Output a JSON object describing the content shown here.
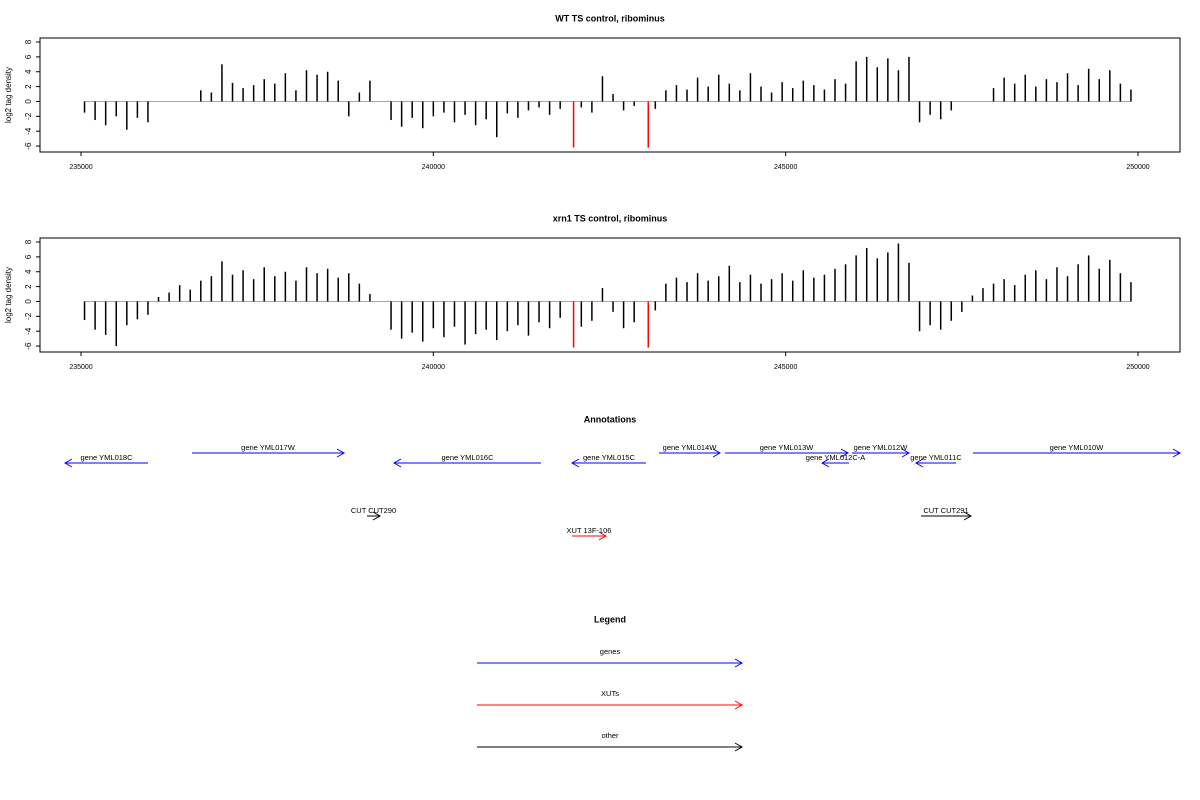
{
  "chart_data": [
    {
      "type": "bar",
      "title": "WT TS control, ribominus",
      "ylabel": "log2 tag density",
      "xlim": [
        234418,
        250596
      ],
      "xticks": [
        235000,
        240000,
        245000,
        250000
      ],
      "ylim": [
        -6.8,
        8.54
      ],
      "yticks": [
        -6,
        -4,
        -2,
        0,
        2,
        4,
        6,
        8
      ],
      "series": [
        {
          "color": "#000000",
          "x": [
            235050,
            235200,
            235350,
            235500,
            235650,
            235800,
            235950,
            236100,
            236250,
            236400,
            236550,
            236700,
            236850,
            237000,
            237150,
            237300,
            237450,
            237600,
            237750,
            237900,
            238050,
            238200,
            238350,
            238500,
            238650,
            238800,
            238950,
            239100,
            239250,
            239400,
            239550,
            239700,
            239850,
            240000,
            240150,
            240300,
            240450,
            240600,
            240750,
            240900,
            241050,
            241200,
            241350,
            241500,
            241650,
            241800,
            242100,
            242250,
            242400,
            242550,
            242700,
            242850,
            243150,
            243300,
            243450,
            243600,
            243750,
            243900,
            244050,
            244200,
            244350,
            244500,
            244650,
            244800,
            244950,
            245100,
            245250,
            245400,
            245550,
            245700,
            245850,
            246000,
            246150,
            246300,
            246450,
            246600,
            246750,
            246900,
            247050,
            247200,
            247350,
            247500,
            247650,
            247800,
            247950,
            248100,
            248250,
            248400,
            248550,
            248700,
            248850,
            249000,
            249150,
            249300,
            249450,
            249600,
            249750,
            249900
          ],
          "values": [
            -1.5,
            -2.5,
            -3.2,
            -2.0,
            -3.8,
            -2.2,
            -2.8,
            0,
            0,
            0,
            0,
            1.5,
            1.2,
            5.0,
            2.5,
            1.8,
            2.2,
            3.0,
            2.4,
            3.8,
            1.5,
            4.2,
            3.6,
            4.0,
            2.8,
            -2.0,
            1.2,
            2.8,
            0,
            -2.5,
            -3.4,
            -2.2,
            -3.6,
            -2.0,
            -1.5,
            -2.8,
            -1.8,
            -3.2,
            -2.4,
            -4.8,
            -1.6,
            -2.2,
            -1.2,
            -0.8,
            -1.8,
            -1.0,
            -0.8,
            -1.5,
            3.4,
            1.0,
            -1.2,
            -0.6,
            -1.0,
            1.5,
            2.2,
            1.6,
            3.2,
            2.0,
            3.6,
            2.4,
            1.5,
            3.8,
            2.0,
            1.2,
            2.6,
            1.8,
            2.8,
            2.2,
            1.6,
            3.0,
            2.4,
            5.4,
            6.0,
            4.6,
            5.8,
            4.2,
            6.0,
            -2.8,
            -1.8,
            -2.4,
            -1.2,
            0,
            0,
            0,
            1.8,
            3.2,
            2.4,
            3.6,
            2.0,
            3.0,
            2.6,
            3.8,
            2.2,
            4.4,
            3.0,
            4.2,
            2.4,
            1.6
          ]
        },
        {
          "color": "#ff0000",
          "x": [
            241990,
            243050
          ],
          "values": [
            -6.2,
            -6.2
          ]
        }
      ]
    },
    {
      "type": "bar",
      "title": "xrn1 TS control, ribominus",
      "ylabel": "log2 tag density",
      "xlim": [
        234418,
        250596
      ],
      "xticks": [
        235000,
        240000,
        245000,
        250000
      ],
      "ylim": [
        -6.8,
        8.54
      ],
      "yticks": [
        -6,
        -4,
        -2,
        0,
        2,
        4,
        6,
        8
      ],
      "series": [
        {
          "color": "#000000",
          "x": [
            235050,
            235200,
            235350,
            235500,
            235650,
            235800,
            235950,
            236100,
            236250,
            236400,
            236550,
            236700,
            236850,
            237000,
            237150,
            237300,
            237450,
            237600,
            237750,
            237900,
            238050,
            238200,
            238350,
            238500,
            238650,
            238800,
            238950,
            239100,
            239250,
            239400,
            239550,
            239700,
            239850,
            240000,
            240150,
            240300,
            240450,
            240600,
            240750,
            240900,
            241050,
            241200,
            241350,
            241500,
            241650,
            241800,
            242100,
            242250,
            242400,
            242550,
            242700,
            242850,
            243150,
            243300,
            243450,
            243600,
            243750,
            243900,
            244050,
            244200,
            244350,
            244500,
            244650,
            244800,
            244950,
            245100,
            245250,
            245400,
            245550,
            245700,
            245850,
            246000,
            246150,
            246300,
            246450,
            246600,
            246750,
            246900,
            247050,
            247200,
            247350,
            247500,
            247650,
            247800,
            247950,
            248100,
            248250,
            248400,
            248550,
            248700,
            248850,
            249000,
            249150,
            249300,
            249450,
            249600,
            249750,
            249900
          ],
          "values": [
            -2.5,
            -3.8,
            -4.5,
            -6.0,
            -3.2,
            -2.4,
            -1.8,
            0.6,
            1.2,
            2.2,
            1.6,
            2.8,
            3.4,
            5.4,
            3.6,
            4.2,
            3.0,
            4.6,
            3.4,
            4.0,
            2.8,
            4.6,
            3.8,
            4.4,
            3.2,
            3.8,
            2.4,
            1.0,
            0,
            -3.8,
            -5.0,
            -4.2,
            -5.4,
            -3.6,
            -4.8,
            -3.4,
            -5.8,
            -4.4,
            -3.8,
            -5.2,
            -4.0,
            -3.2,
            -4.6,
            -2.8,
            -3.6,
            -2.2,
            -3.4,
            -2.6,
            1.8,
            -1.4,
            -3.6,
            -2.8,
            -1.2,
            2.4,
            3.2,
            2.6,
            3.8,
            2.8,
            3.4,
            4.8,
            2.6,
            3.6,
            2.4,
            3.0,
            3.8,
            2.8,
            4.2,
            3.2,
            3.6,
            4.4,
            5.0,
            6.2,
            7.2,
            5.8,
            6.6,
            7.8,
            5.2,
            -4.0,
            -3.2,
            -3.8,
            -2.6,
            -1.4,
            0.8,
            1.8,
            2.4,
            3.0,
            2.2,
            3.6,
            4.2,
            3.0,
            4.6,
            3.4,
            5.0,
            6.2,
            4.4,
            5.6,
            3.8,
            2.6
          ]
        },
        {
          "color": "#ff0000",
          "x": [
            241990,
            243050
          ],
          "values": [
            -6.2,
            -6.2
          ]
        }
      ]
    }
  ],
  "annotations": {
    "title": "Annotations",
    "colors": {
      "gene": "#0000ff",
      "XUT": "#ff0000",
      "CUT": "#000000"
    },
    "features": [
      {
        "type": "gene",
        "label": "gene YML018C",
        "start": 234773,
        "end": 235951,
        "strand": "-"
      },
      {
        "type": "gene",
        "label": "gene YML017W",
        "start": 236575,
        "end": 238732,
        "strand": "+"
      },
      {
        "type": "gene",
        "label": "gene YML016C",
        "start": 239442,
        "end": 241528,
        "strand": "-"
      },
      {
        "type": "gene",
        "label": "gene YML015C",
        "start": 241968,
        "end": 243018,
        "strand": "-"
      },
      {
        "type": "gene",
        "label": "gene YML014W",
        "start": 243202,
        "end": 244068,
        "strand": "+"
      },
      {
        "type": "gene",
        "label": "gene YML013W",
        "start": 244139,
        "end": 245885,
        "strand": "+"
      },
      {
        "type": "gene",
        "label": "gene YML012C-A",
        "start": 245516,
        "end": 245899,
        "strand": "-"
      },
      {
        "type": "gene",
        "label": "gene YML012W",
        "start": 245941,
        "end": 246750,
        "strand": "+"
      },
      {
        "type": "gene",
        "label": "gene YML011C",
        "start": 246849,
        "end": 247417,
        "strand": "-"
      },
      {
        "type": "gene",
        "label": "gene YML010W",
        "start": 247658,
        "end": 250596,
        "strand": "+"
      },
      {
        "type": "CUT",
        "label": "CUT CUT290",
        "start": 239059,
        "end": 239243,
        "strand": "+"
      },
      {
        "type": "CUT",
        "label": "CUT CUT291",
        "start": 246920,
        "end": 247630,
        "strand": "+"
      },
      {
        "type": "XUT",
        "label": "XUT 13F-106",
        "start": 241968,
        "end": 242450,
        "strand": "+"
      }
    ]
  },
  "legend": {
    "title": "Legend",
    "entries": [
      {
        "label": "genes",
        "color": "#0000ff"
      },
      {
        "label": "XUTs",
        "color": "#ff0000"
      },
      {
        "label": "other",
        "color": "#000000"
      }
    ]
  }
}
